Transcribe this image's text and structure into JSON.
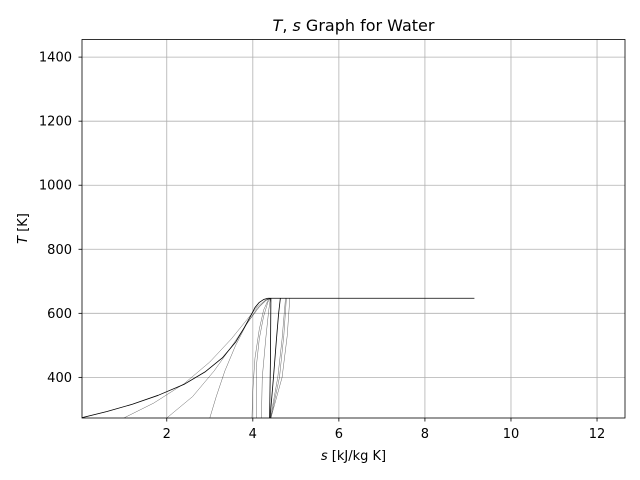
{
  "chart_data": {
    "type": "line",
    "title": "T, s Graph for Water",
    "title_parts": [
      "T",
      ", ",
      "s",
      " Graph for Water"
    ],
    "xlabel": "s [kJ/kg K]",
    "xlabel_parts": [
      "s",
      " [kJ/kg K]"
    ],
    "ylabel": "T [K]",
    "ylabel_parts": [
      "T",
      " [K]"
    ],
    "xlim": [
      0.03,
      12.65
    ],
    "ylim": [
      273.15,
      1455
    ],
    "xticks": [
      2,
      4,
      6,
      8,
      10,
      12
    ],
    "yticks": [
      400,
      600,
      800,
      1000,
      1200,
      1400
    ],
    "xtick_labels": [
      "2",
      "4",
      "6",
      "8",
      "10",
      "12"
    ],
    "ytick_labels": [
      "400",
      "600",
      "800",
      "1000",
      "1200",
      "1400"
    ],
    "grid": true,
    "series": [
      {
        "stroke": 0.8,
        "points": [
          [
            0.0,
            273.15
          ],
          [
            0.6,
            293
          ],
          [
            1.2,
            316
          ],
          [
            1.8,
            344
          ],
          [
            2.4,
            378
          ],
          [
            2.9,
            418
          ],
          [
            3.3,
            462
          ],
          [
            3.6,
            510
          ],
          [
            3.8,
            555
          ],
          [
            3.95,
            592
          ],
          [
            4.05,
            618
          ],
          [
            4.15,
            634
          ],
          [
            4.25,
            643
          ],
          [
            4.35,
            647
          ],
          [
            4.41,
            647.1
          ]
        ]
      },
      {
        "stroke": 0.3,
        "points": [
          [
            1.0,
            273.15
          ],
          [
            1.7,
            320
          ],
          [
            2.4,
            380
          ],
          [
            3.0,
            448
          ],
          [
            3.5,
            520
          ],
          [
            3.85,
            578
          ],
          [
            4.1,
            620
          ],
          [
            4.3,
            642
          ],
          [
            4.41,
            647.1
          ]
        ]
      },
      {
        "stroke": 0.3,
        "points": [
          [
            2.0,
            273.15
          ],
          [
            2.6,
            340
          ],
          [
            3.1,
            420
          ],
          [
            3.55,
            505
          ],
          [
            3.9,
            575
          ],
          [
            4.15,
            620
          ],
          [
            4.32,
            642
          ],
          [
            4.41,
            647.1
          ]
        ]
      },
      {
        "stroke": 0.3,
        "points": [
          [
            3.0,
            273.15
          ],
          [
            3.15,
            340
          ],
          [
            3.35,
            420
          ],
          [
            3.6,
            500
          ],
          [
            3.85,
            565
          ],
          [
            4.1,
            615
          ],
          [
            4.3,
            640
          ],
          [
            4.41,
            647.1
          ]
        ]
      },
      {
        "stroke": 0.3,
        "points": [
          [
            3.98,
            273.15
          ],
          [
            4.0,
            360
          ],
          [
            4.05,
            460
          ],
          [
            4.15,
            550
          ],
          [
            4.25,
            610
          ],
          [
            4.35,
            640
          ],
          [
            4.41,
            647.1
          ]
        ]
      },
      {
        "stroke": 0.3,
        "points": [
          [
            4.08,
            273.15
          ],
          [
            4.08,
            432
          ],
          [
            4.15,
            520
          ],
          [
            4.25,
            590
          ],
          [
            4.35,
            635
          ],
          [
            4.41,
            647.1
          ]
        ]
      },
      {
        "stroke": 0.3,
        "points": [
          [
            4.2,
            273.15
          ],
          [
            4.22,
            400
          ],
          [
            4.3,
            520
          ],
          [
            4.37,
            610
          ],
          [
            4.41,
            647.1
          ]
        ]
      },
      {
        "stroke": 0.8,
        "points": [
          [
            4.39,
            273.15
          ],
          [
            4.41,
            460
          ],
          [
            4.42,
            647.1
          ]
        ]
      },
      {
        "stroke": 0.8,
        "points": [
          [
            4.4,
            273.15
          ],
          [
            4.48,
            400
          ],
          [
            4.55,
            520
          ],
          [
            4.6,
            600
          ],
          [
            4.64,
            647.1
          ]
        ]
      },
      {
        "stroke": 0.3,
        "points": [
          [
            4.41,
            273.15
          ],
          [
            4.58,
            400
          ],
          [
            4.68,
            520
          ],
          [
            4.73,
            600
          ],
          [
            4.76,
            647.1
          ]
        ]
      },
      {
        "stroke": 0.3,
        "points": [
          [
            4.42,
            273.15
          ],
          [
            4.62,
            400
          ],
          [
            4.72,
            530
          ],
          [
            4.78,
            647.1
          ]
        ]
      },
      {
        "stroke": 0.3,
        "points": [
          [
            4.42,
            273.15
          ],
          [
            4.68,
            400
          ],
          [
            4.8,
            530
          ],
          [
            4.86,
            647.1
          ]
        ]
      },
      {
        "stroke": 0.8,
        "points": [
          [
            4.41,
            647.1
          ],
          [
            9.15,
            647.1
          ]
        ]
      }
    ]
  }
}
